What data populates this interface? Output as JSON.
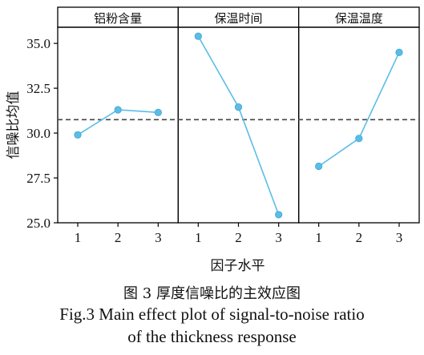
{
  "figure": {
    "caption_cn": "图 3   厚度信噪比的主效应图",
    "caption_en_line1": "Fig.3   Main effect plot of signal-to-noise ratio",
    "caption_en_line2": "of the thickness response"
  },
  "chart_data": {
    "type": "line",
    "xlabel": "因子水平",
    "ylabel": "信噪比均值",
    "ylim": [
      25.0,
      35.9
    ],
    "yticks": [
      "25.0",
      "27.5",
      "30.0",
      "32.5",
      "35.0"
    ],
    "ytick_values": [
      25.0,
      27.5,
      30.0,
      32.5,
      35.0
    ],
    "reference_line": 30.75,
    "reference_style": "dashed",
    "grid": false,
    "line_color": "#5bbde6",
    "panels": [
      {
        "name": "铝粉含量",
        "categories": [
          "1",
          "2",
          "3"
        ],
        "values": [
          29.9,
          31.3,
          31.15
        ]
      },
      {
        "name": "保温时间",
        "categories": [
          "1",
          "2",
          "3"
        ],
        "values": [
          35.4,
          31.45,
          25.45
        ]
      },
      {
        "name": "保温温度",
        "categories": [
          "1",
          "2",
          "3"
        ],
        "values": [
          28.15,
          29.7,
          34.5
        ]
      }
    ]
  }
}
